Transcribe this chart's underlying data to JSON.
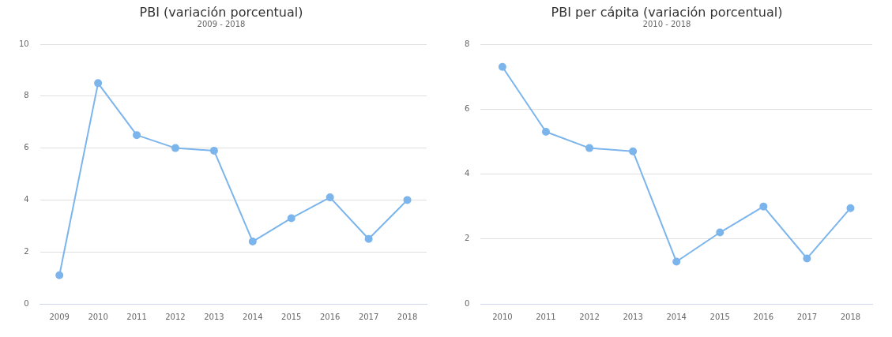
{
  "chart_data": [
    {
      "type": "line",
      "title": "PBI (variación porcentual)",
      "subtitle": "2009 - 2018",
      "categories": [
        "2009",
        "2010",
        "2011",
        "2012",
        "2013",
        "2014",
        "2015",
        "2016",
        "2017",
        "2018"
      ],
      "series": [
        {
          "color": "#7cb5ec",
          "values": [
            1.1,
            8.5,
            6.5,
            6.0,
            5.9,
            2.4,
            3.3,
            4.1,
            2.5,
            4.0
          ]
        }
      ],
      "ylim": [
        0,
        10
      ],
      "yticks": [
        0,
        2,
        4,
        6,
        8,
        10
      ],
      "grid": "y",
      "legend": false,
      "marker": "circle"
    },
    {
      "type": "line",
      "title": "PBI per cápita (variación porcentual)",
      "subtitle": "2010 - 2018",
      "categories": [
        "2010",
        "2011",
        "2012",
        "2013",
        "2014",
        "2015",
        "2016",
        "2017",
        "2018"
      ],
      "series": [
        {
          "color": "#7cb5ec",
          "values": [
            7.3,
            5.3,
            4.8,
            4.7,
            1.3,
            2.2,
            3.0,
            1.4,
            2.95
          ]
        }
      ],
      "ylim": [
        0,
        8
      ],
      "yticks": [
        0,
        2,
        4,
        6,
        8
      ],
      "grid": "y",
      "legend": false,
      "marker": "circle"
    }
  ]
}
